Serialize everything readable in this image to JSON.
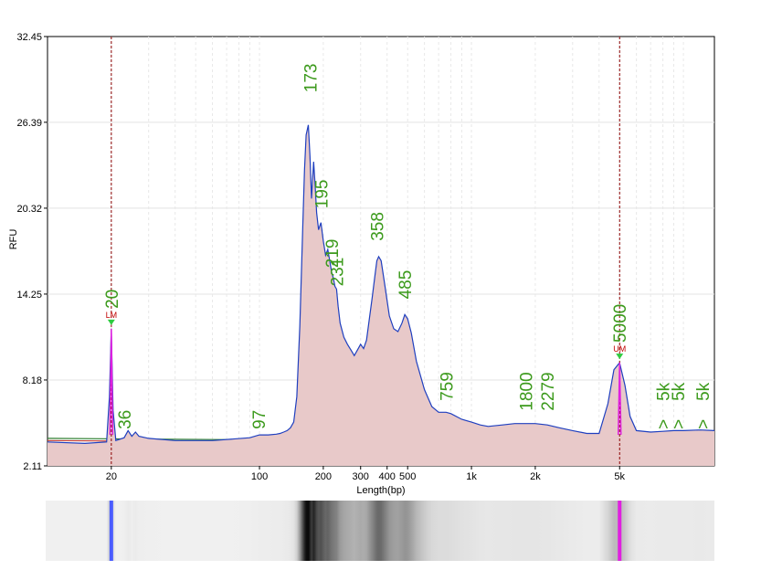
{
  "chart_data": {
    "type": "line",
    "title": "",
    "xlabel": "Length(bp)",
    "ylabel": "RFU",
    "x_scale": "log",
    "xlim": [
      10,
      14000
    ],
    "ylim": [
      2.11,
      32.45
    ],
    "yticks": [
      2.11,
      8.18,
      14.25,
      20.32,
      26.39,
      32.45
    ],
    "ytick_labels": [
      "2.11",
      "8.18",
      "14.25",
      "20.32",
      "26.39",
      "32.45"
    ],
    "xticks": [
      {
        "value": 20,
        "label": "20"
      },
      {
        "value": 100,
        "label": "100"
      },
      {
        "value": 200,
        "label": "200"
      },
      {
        "value": 300,
        "label": "300"
      },
      {
        "value": 400,
        "label": "400"
      },
      {
        "value": 500,
        "label": "500"
      },
      {
        "value": 1000,
        "label": "1k"
      },
      {
        "value": 2000,
        "label": "2k"
      },
      {
        "value": 5000,
        "label": "5k"
      }
    ],
    "grid": true,
    "markers": [
      {
        "x": 20,
        "tag": "LM",
        "label": "20",
        "height": 11.8
      },
      {
        "x": 5000,
        "tag": "UM",
        "label": "5000",
        "height": 9.4
      }
    ],
    "peak_labels": [
      {
        "x": 23,
        "y": 4.7,
        "label": "36"
      },
      {
        "x": 99,
        "y": 4.7,
        "label": "97"
      },
      {
        "x": 173,
        "y": 28.5,
        "label": "173"
      },
      {
        "x": 195,
        "y": 20.3,
        "label": "195"
      },
      {
        "x": 219,
        "y": 16.1,
        "label": "219"
      },
      {
        "x": 231,
        "y": 14.8,
        "label": "231"
      },
      {
        "x": 358,
        "y": 18.0,
        "label": "358"
      },
      {
        "x": 485,
        "y": 13.9,
        "label": "485"
      },
      {
        "x": 759,
        "y": 6.7,
        "label": "759"
      },
      {
        "x": 1800,
        "y": 6.0,
        "label": "1800"
      },
      {
        "x": 2279,
        "y": 6.0,
        "label": "2279"
      },
      {
        "x": 8000,
        "y": 6.7,
        "label": "5k"
      },
      {
        "x": 9400,
        "y": 6.7,
        "label": "5k"
      },
      {
        "x": 12300,
        "y": 6.7,
        "label": "5k"
      },
      {
        "x": 8000,
        "y": 4.7,
        "label": ">"
      },
      {
        "x": 9400,
        "y": 4.7,
        "label": ">"
      },
      {
        "x": 12300,
        "y": 4.7,
        "label": ">"
      }
    ],
    "series": [
      {
        "name": "",
        "color": "#1f3fbf",
        "fill": "#e8c9c9",
        "x": [
          10,
          15,
          19,
          19.6,
          20,
          20.4,
          21,
          23,
          24,
          25,
          26,
          27,
          30,
          40,
          60,
          90,
          100,
          110,
          120,
          125,
          130,
          135,
          140,
          145,
          150,
          155,
          160,
          163,
          166,
          170,
          173,
          176,
          180,
          183,
          186,
          190,
          195,
          200,
          205,
          210,
          215,
          219,
          223,
          227,
          231,
          235,
          240,
          250,
          260,
          270,
          280,
          290,
          300,
          310,
          320,
          330,
          340,
          350,
          358,
          365,
          375,
          390,
          410,
          430,
          450,
          470,
          485,
          500,
          520,
          550,
          600,
          650,
          700,
          759,
          800,
          900,
          1000,
          1100,
          1200,
          1400,
          1600,
          1800,
          2000,
          2279,
          2600,
          3000,
          3500,
          4000,
          4400,
          4700,
          5000,
          5300,
          5600,
          6000,
          7000,
          8000,
          9000,
          10000,
          12000,
          14000
        ],
        "y": [
          3.8,
          3.7,
          3.8,
          7,
          11.8,
          6,
          3.9,
          4.1,
          4.6,
          4.2,
          4.5,
          4.2,
          4.05,
          3.9,
          3.9,
          4.1,
          4.3,
          4.3,
          4.35,
          4.4,
          4.5,
          4.6,
          4.8,
          5.2,
          7,
          12,
          19,
          23,
          25.5,
          26.2,
          24,
          21,
          23.6,
          22,
          20,
          18.8,
          19.3,
          18,
          17,
          17.4,
          16.5,
          15.8,
          15.4,
          14.8,
          14.6,
          13.4,
          12.2,
          11.2,
          10.7,
          10.3,
          9.9,
          10.3,
          10.7,
          10.4,
          11,
          12.5,
          14,
          15.5,
          16.6,
          16.9,
          16.6,
          14.9,
          12.7,
          11.8,
          11.6,
          12.2,
          12.8,
          12.5,
          11.5,
          9.5,
          7.5,
          6.3,
          5.9,
          5.9,
          5.8,
          5.4,
          5.2,
          5,
          4.9,
          5,
          5.1,
          5.1,
          5.1,
          5,
          4.8,
          4.6,
          4.4,
          4.4,
          6.5,
          8.9,
          9.4,
          7.8,
          5.6,
          4.6,
          4.5,
          4.55,
          4.6,
          4.6,
          4.65,
          4.6
        ]
      },
      {
        "name": "",
        "color": "#2e7d2e",
        "x": [
          10,
          100,
          1000,
          5000,
          14000
        ],
        "y": [
          4.05,
          3.95,
          3.75,
          3.6,
          3.55
        ]
      },
      {
        "name": "",
        "color": "#c0392b",
        "x": [
          10,
          100,
          1000,
          5000,
          14000
        ],
        "y": [
          3.9,
          3.8,
          3.6,
          3.5,
          3.45
        ]
      }
    ]
  }
}
